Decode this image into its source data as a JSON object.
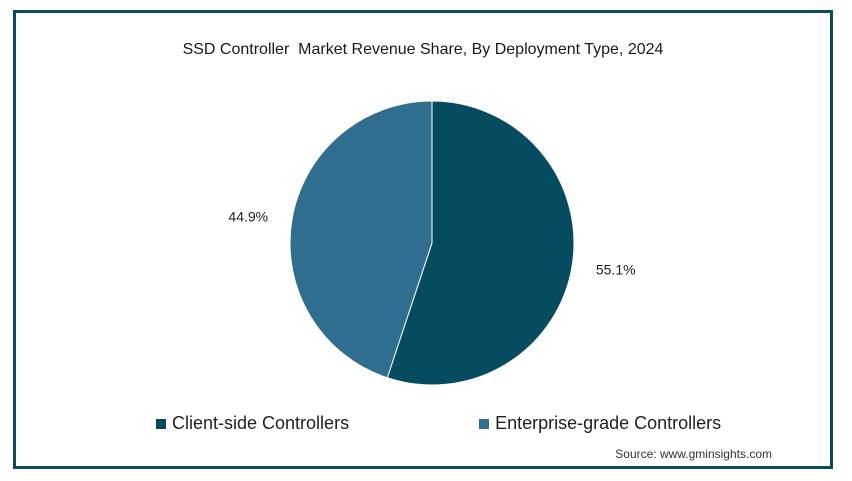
{
  "chart_data": {
    "type": "pie",
    "title": "SSD Controller  Market Revenue Share, By Deployment Type, 2024",
    "slices": [
      {
        "name": "Client-side Controllers",
        "value": 55.1,
        "label": "55.1%",
        "color": "#064c61"
      },
      {
        "name": "Enterprise-grade Controllers",
        "value": 44.9,
        "label": "44.9%",
        "color": "#2f6e8e"
      }
    ],
    "legend_position": "bottom"
  },
  "source": "Source: www.gminsights.com"
}
